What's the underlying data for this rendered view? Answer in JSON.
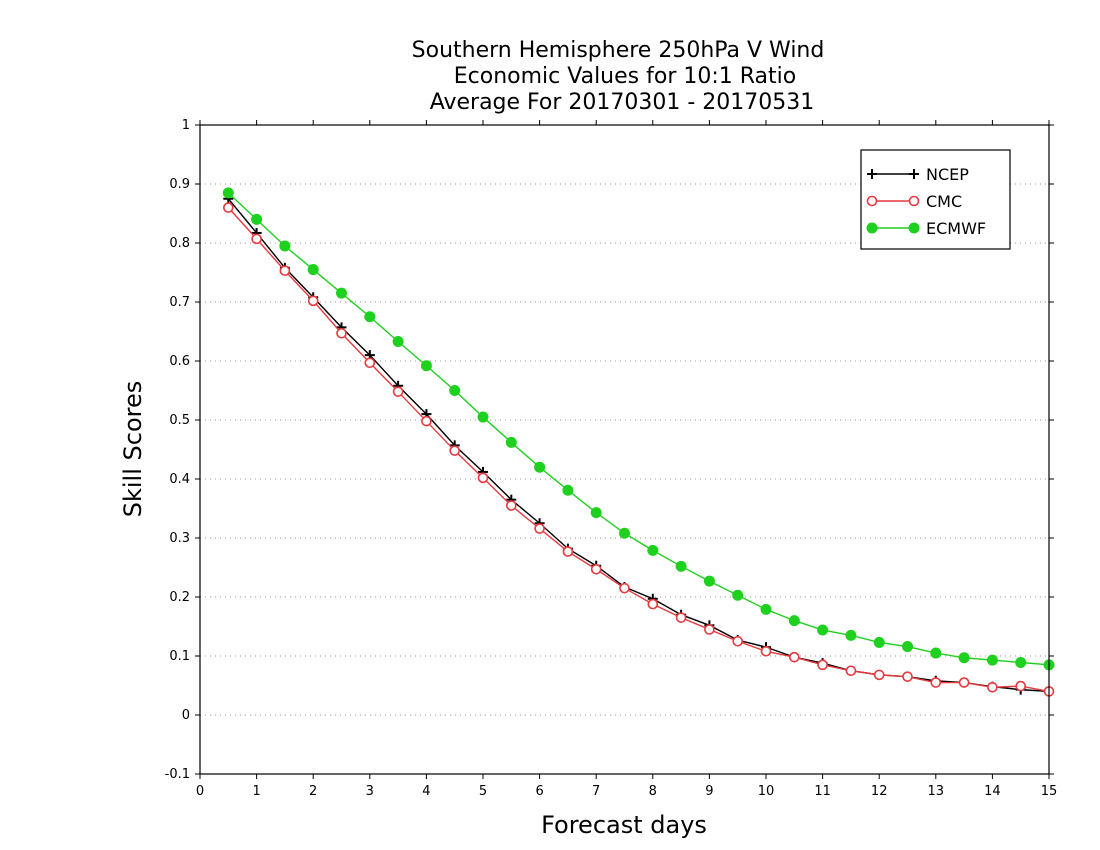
{
  "chart_data": {
    "type": "line",
    "title": [
      "Southern Hemisphere 250hPa V Wind",
      "Economic Values for 10:1 Ratio",
      "Average For 20170301 - 20170531"
    ],
    "xlabel": "Forecast days",
    "ylabel": "Skill Scores",
    "xlim": [
      0,
      15
    ],
    "ylim": [
      -0.1,
      1
    ],
    "x_ticks": [
      "0",
      "1",
      "2",
      "3",
      "4",
      "5",
      "6",
      "7",
      "8",
      "9",
      "10",
      "11",
      "12",
      "13",
      "14",
      "15"
    ],
    "y_ticks": [
      "-0.1",
      "0",
      "0.1",
      "0.2",
      "0.3",
      "0.4",
      "0.5",
      "0.6",
      "0.7",
      "0.8",
      "0.9",
      "1"
    ],
    "grid": true,
    "legend_position": "top-right",
    "x": [
      0.5,
      1,
      1.5,
      2,
      2.5,
      3,
      3.5,
      4,
      4.5,
      5,
      5.5,
      6,
      6.5,
      7,
      7.5,
      8,
      8.5,
      9,
      9.5,
      10,
      10.5,
      11,
      11.5,
      12,
      12.5,
      13,
      13.5,
      14,
      14.5,
      15
    ],
    "series": [
      {
        "name": "NCEP",
        "color": "#000000",
        "marker": "plus",
        "values": [
          0.875,
          0.817,
          0.758,
          0.708,
          0.657,
          0.61,
          0.558,
          0.51,
          0.457,
          0.412,
          0.365,
          0.325,
          0.282,
          0.253,
          0.217,
          0.197,
          0.17,
          0.152,
          0.127,
          0.115,
          0.098,
          0.088,
          0.075,
          0.068,
          0.065,
          0.058,
          0.055,
          0.048,
          0.043,
          0.04
        ]
      },
      {
        "name": "CMC",
        "color": "#e8393f",
        "marker": "open-circle",
        "values": [
          0.86,
          0.807,
          0.753,
          0.702,
          0.647,
          0.597,
          0.548,
          0.498,
          0.448,
          0.402,
          0.355,
          0.316,
          0.277,
          0.247,
          0.215,
          0.188,
          0.165,
          0.145,
          0.125,
          0.108,
          0.098,
          0.085,
          0.075,
          0.068,
          0.065,
          0.055,
          0.055,
          0.047,
          0.049,
          0.04
        ]
      },
      {
        "name": "ECMWF",
        "color": "#1fd11f",
        "marker": "filled-circle",
        "values": [
          0.885,
          0.84,
          0.795,
          0.755,
          0.715,
          0.675,
          0.633,
          0.592,
          0.55,
          0.505,
          0.462,
          0.42,
          0.381,
          0.343,
          0.308,
          0.279,
          0.252,
          0.227,
          0.203,
          0.179,
          0.16,
          0.144,
          0.135,
          0.123,
          0.116,
          0.105,
          0.097,
          0.093,
          0.089,
          0.085
        ]
      }
    ]
  }
}
